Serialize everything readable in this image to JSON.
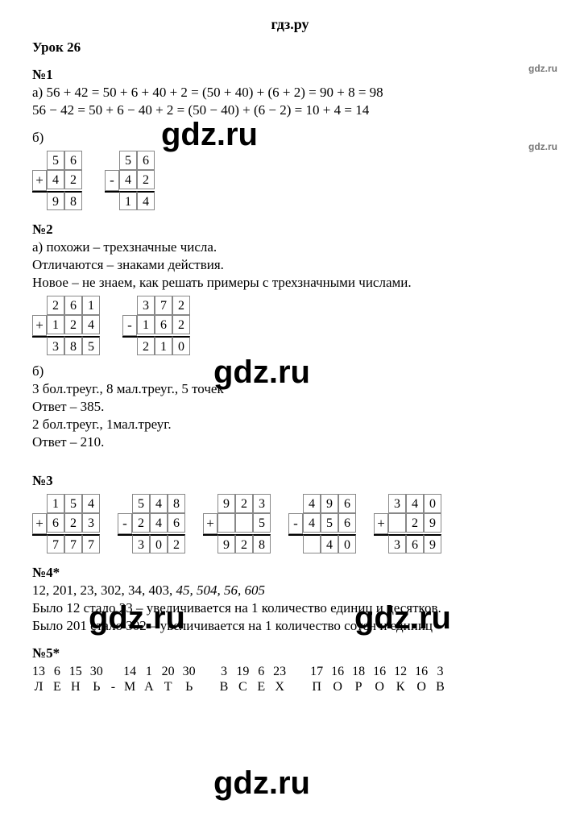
{
  "site": "гдз.ру",
  "watermark": "gdz.ru",
  "lesson": "Урок 26",
  "t1": {
    "num": "№1",
    "a_label": "а)",
    "a_line1": "56 + 42 = 50 + 6 + 40 + 2 = (50 + 40) + (6 + 2) = 90 + 8 = 98",
    "a_line2": "56 − 42 = 50 + 6 − 40 + 2 = (50 − 40) + (6 − 2) = 10 + 4 = 14",
    "b_label": "б)",
    "calc1": {
      "op": "+",
      "r1": [
        "5",
        "6"
      ],
      "r2": [
        "4",
        "2"
      ],
      "res": [
        "9",
        "8"
      ]
    },
    "calc2": {
      "op": "-",
      "r1": [
        "5",
        "6"
      ],
      "r2": [
        "4",
        "2"
      ],
      "res": [
        "1",
        "4"
      ]
    }
  },
  "t2": {
    "num": "№2",
    "a_label": "а)",
    "a_l1": "похожи – трехзначные числа.",
    "a_l2": "Отличаются – знаками действия.",
    "a_l3": "Новое – не знаем, как решать примеры с трехзначными числами.",
    "calc1": {
      "op": "+",
      "r1": [
        "2",
        "6",
        "1"
      ],
      "r2": [
        "1",
        "2",
        "4"
      ],
      "res": [
        "3",
        "8",
        "5"
      ]
    },
    "calc2": {
      "op": "-",
      "r1": [
        "3",
        "7",
        "2"
      ],
      "r2": [
        "1",
        "6",
        "2"
      ],
      "res": [
        "2",
        "1",
        "0"
      ]
    },
    "b_label": "б)",
    "b_l1": "3 бол.треуг., 8 мал.треуг., 5 точек",
    "b_l2": "Ответ – 385.",
    "b_l3": " 2 бол.треуг., 1мал.треуг.",
    "b_l4": "Ответ – 210."
  },
  "t3": {
    "num": "№3",
    "calcs": [
      {
        "op": "+",
        "r1": [
          "1",
          "5",
          "4"
        ],
        "r2": [
          "6",
          "2",
          "3"
        ],
        "res": [
          "7",
          "7",
          "7"
        ]
      },
      {
        "op": "-",
        "r1": [
          "5",
          "4",
          "8"
        ],
        "r2": [
          "2",
          "4",
          "6"
        ],
        "res": [
          "3",
          "0",
          "2"
        ]
      },
      {
        "op": "+",
        "r1": [
          "9",
          "2",
          "3"
        ],
        "r2": [
          "",
          "",
          "5"
        ],
        "res": [
          "9",
          "2",
          "8"
        ]
      },
      {
        "op": "-",
        "r1": [
          "4",
          "9",
          "6"
        ],
        "r2": [
          "4",
          "5",
          "6"
        ],
        "res": [
          "",
          "4",
          "0"
        ]
      },
      {
        "op": "+",
        "r1": [
          "3",
          "4",
          "0"
        ],
        "r2": [
          "",
          "2",
          "9"
        ],
        "res": [
          "3",
          "6",
          "9"
        ]
      }
    ]
  },
  "t4": {
    "num": "№4*",
    "seq_plain": "12, 201, 23, 302, 34, 403, ",
    "seq_ital": "45, 504, 56, 605",
    "l2": "Было 12 стало 23 – увеличивается на 1 количество единиц и десятков.",
    "l3": "Было 201 стало 302 – увеличивается на 1 количество сотен и единиц"
  },
  "t5": {
    "num": "№5*",
    "groups": [
      {
        "nums": [
          "13",
          "6",
          "15",
          "30"
        ],
        "lets": [
          "Л",
          "Е",
          "Н",
          "Ь"
        ]
      },
      {
        "nums": [
          "14",
          "1",
          "20",
          "30"
        ],
        "lets": [
          "М",
          "А",
          "Т",
          "Ь"
        ]
      },
      {
        "nums": [
          "3",
          "19",
          "6",
          "23"
        ],
        "lets": [
          "В",
          "С",
          "Е",
          "Х"
        ]
      },
      {
        "nums": [
          "17",
          "16",
          "18",
          "16",
          "12",
          "16",
          "3"
        ],
        "lets": [
          "П",
          "О",
          "Р",
          "О",
          "К",
          "О",
          "В"
        ]
      }
    ],
    "dash": "-"
  }
}
